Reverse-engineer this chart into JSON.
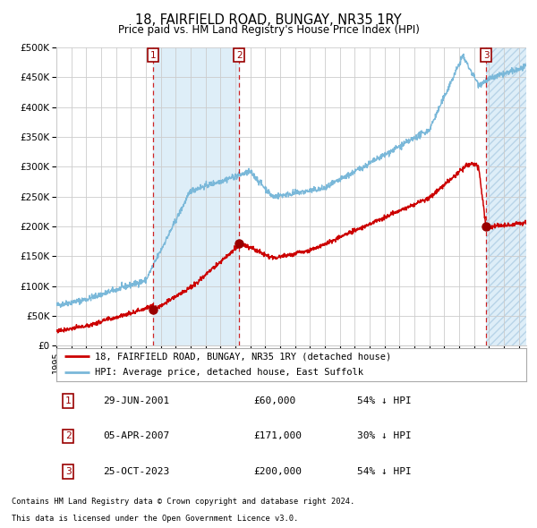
{
  "title": "18, FAIRFIELD ROAD, BUNGAY, NR35 1RY",
  "subtitle": "Price paid vs. HM Land Registry's House Price Index (HPI)",
  "legend_line1": "18, FAIRFIELD ROAD, BUNGAY, NR35 1RY (detached house)",
  "legend_line2": "HPI: Average price, detached house, East Suffolk",
  "footer1": "Contains HM Land Registry data © Crown copyright and database right 2024.",
  "footer2": "This data is licensed under the Open Government Licence v3.0.",
  "transactions": [
    {
      "num": 1,
      "date": "29-JUN-2001",
      "date_x": 2001.49,
      "price": 60000,
      "pct": "54% ↓ HPI"
    },
    {
      "num": 2,
      "date": "05-APR-2007",
      "date_x": 2007.26,
      "price": 171000,
      "pct": "30% ↓ HPI"
    },
    {
      "num": 3,
      "date": "25-OCT-2023",
      "date_x": 2023.82,
      "price": 200000,
      "pct": "54% ↓ HPI"
    }
  ],
  "shaded_regions": [
    [
      2001.49,
      2007.26
    ]
  ],
  "hpi_color": "#7ab8d9",
  "price_color": "#cc0000",
  "marker_color": "#990000",
  "dashed_line_color": "#cc0000",
  "shade_color": "#deeef8",
  "hatch_color": "#deeef8",
  "grid_color": "#cccccc",
  "background_color": "#ffffff",
  "ylim": [
    0,
    500000
  ],
  "xlim": [
    1995.0,
    2026.5
  ],
  "yticks": [
    0,
    50000,
    100000,
    150000,
    200000,
    250000,
    300000,
    350000,
    400000,
    450000,
    500000
  ],
  "xticks": [
    1995,
    1996,
    1997,
    1998,
    1999,
    2000,
    2001,
    2002,
    2003,
    2004,
    2005,
    2006,
    2007,
    2008,
    2009,
    2010,
    2011,
    2012,
    2013,
    2014,
    2015,
    2016,
    2017,
    2018,
    2019,
    2020,
    2021,
    2022,
    2023,
    2024,
    2025,
    2026
  ]
}
